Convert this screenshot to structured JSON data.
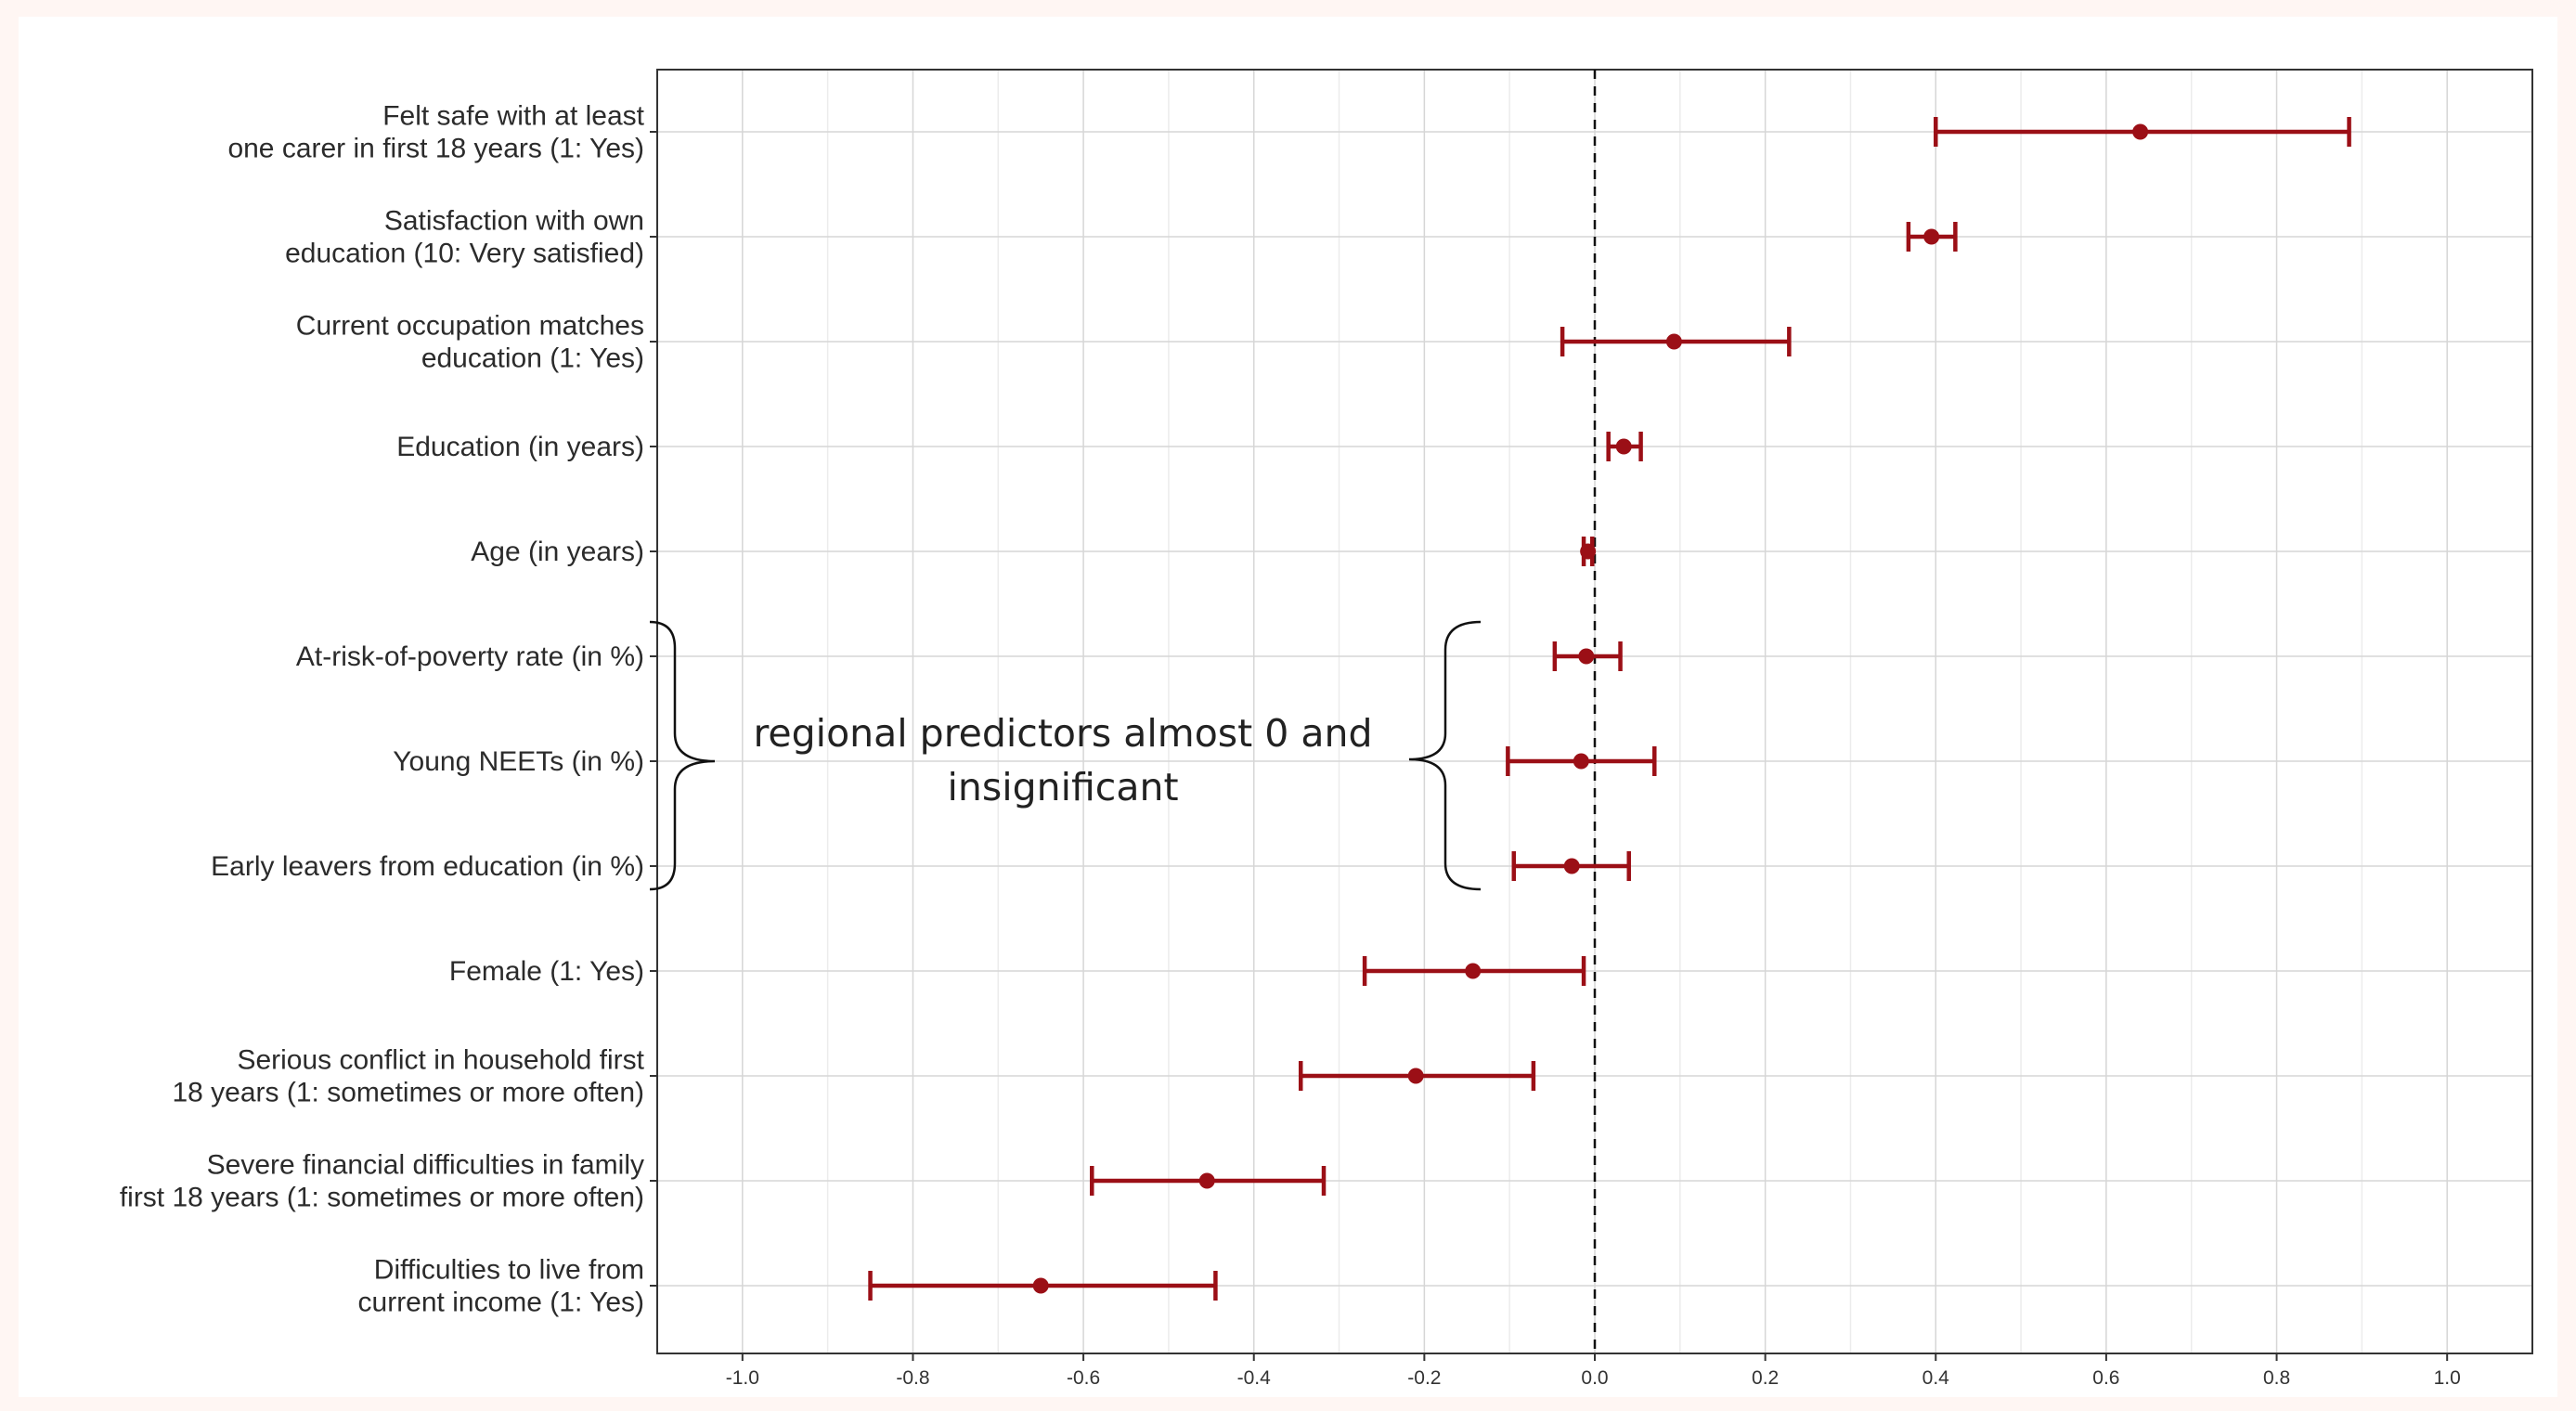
{
  "chart_data": {
    "type": "forest",
    "title": "",
    "xlabel": "",
    "ylabel": "",
    "xlim": [
      -1.1,
      1.1
    ],
    "x_ticks": [
      -1.0,
      -0.8,
      -0.6,
      -0.4,
      -0.2,
      0.0,
      0.2,
      0.4,
      0.6,
      0.8,
      1.0
    ],
    "x_tick_labels": [
      "-1.0",
      "-0.8",
      "-0.6",
      "-0.4",
      "-0.2",
      "0.0",
      "0.2",
      "0.4",
      "0.6",
      "0.8",
      "1.0"
    ],
    "grid": true,
    "reference_line": {
      "x": 0,
      "style": "dashed"
    },
    "point_color": "#9b0f16",
    "categories": [
      {
        "label": [
          "Felt safe with at least",
          "one carer in first 18 years (1: Yes)"
        ],
        "estimate": 0.64,
        "ci_low": 0.4,
        "ci_high": 0.885
      },
      {
        "label": [
          "Satisfaction with own",
          "education (10: Very satisfied)"
        ],
        "estimate": 0.395,
        "ci_low": 0.368,
        "ci_high": 0.423
      },
      {
        "label": [
          "Current occupation matches",
          "education (1: Yes)"
        ],
        "estimate": 0.093,
        "ci_low": -0.038,
        "ci_high": 0.228
      },
      {
        "label": [
          "Education (in years)"
        ],
        "estimate": 0.034,
        "ci_low": 0.016,
        "ci_high": 0.054
      },
      {
        "label": [
          "Age (in years)"
        ],
        "estimate": -0.008,
        "ci_low": -0.013,
        "ci_high": -0.003
      },
      {
        "label": [
          "At-risk-of-poverty rate (in %)"
        ],
        "estimate": -0.01,
        "ci_low": -0.047,
        "ci_high": 0.03
      },
      {
        "label": [
          "Young NEETs (in %)"
        ],
        "estimate": -0.016,
        "ci_low": -0.102,
        "ci_high": 0.07
      },
      {
        "label": [
          "Early leavers from education (in %)"
        ],
        "estimate": -0.027,
        "ci_low": -0.095,
        "ci_high": 0.04
      },
      {
        "label": [
          "Female (1: Yes)"
        ],
        "estimate": -0.143,
        "ci_low": -0.27,
        "ci_high": -0.013
      },
      {
        "label": [
          "Serious conflict in household first",
          "18 years (1: sometimes or more often)"
        ],
        "estimate": -0.21,
        "ci_low": -0.345,
        "ci_high": -0.072
      },
      {
        "label": [
          "Severe financial difficulties in family",
          "first 18 years (1: sometimes or more often)"
        ],
        "estimate": -0.455,
        "ci_low": -0.59,
        "ci_high": -0.318
      },
      {
        "label": [
          "Difficulties to live from",
          "current income (1: Yes)"
        ],
        "estimate": -0.65,
        "ci_low": -0.85,
        "ci_high": -0.445
      }
    ],
    "annotation": {
      "text_lines": [
        "regional predictors almost 0 and",
        "insignificant"
      ],
      "applies_to": [
        "At-risk-of-poverty rate (in %)",
        "Young NEETs (in %)",
        "Early leavers from education (in %)"
      ]
    }
  }
}
